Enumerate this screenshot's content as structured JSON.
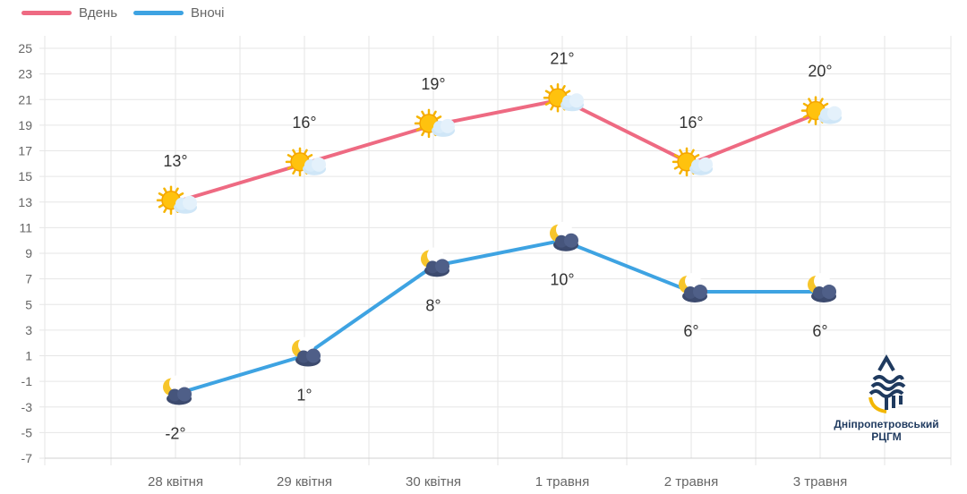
{
  "legend": {
    "day_label": "Вдень",
    "night_label": "Вночі"
  },
  "colors": {
    "day": "#ee6a82",
    "night": "#3ea3e2",
    "grid": "#e6e6e6",
    "tick_text": "#666666",
    "value_text": "#333333",
    "logo_blue": "#1f3a5f",
    "logo_gold": "#f2b705"
  },
  "logo": {
    "line1": "Дніпропетровський",
    "line2": "РЦГМ"
  },
  "chart_data": {
    "type": "line",
    "categories": [
      "28 квітня",
      "29 квітня",
      "30 квітня",
      "1 травня",
      "2 травня",
      "3 травня"
    ],
    "series": [
      {
        "name": "Вдень",
        "values": [
          13,
          16,
          19,
          21,
          16,
          20
        ],
        "labels": [
          "13°",
          "16°",
          "19°",
          "21°",
          "16°",
          "20°"
        ],
        "icons": [
          "sun-cloud-icon",
          "sun-cloud-icon",
          "sun-cloud-icon",
          "sun-cloud-icon",
          "sun-cloud-icon",
          "sun-cloud-icon"
        ],
        "label_position": "above"
      },
      {
        "name": "Вночі",
        "values": [
          -2,
          1,
          8,
          10,
          6,
          6
        ],
        "labels": [
          "-2°",
          "1°",
          "8°",
          "10°",
          "6°",
          "6°"
        ],
        "icons": [
          "moon-cloud-icon",
          "moon-cloud-icon",
          "moon-cloud-icon",
          "moon-cloud-icon",
          "moon-cloud-icon",
          "moon-cloud-icon"
        ],
        "label_position": "below"
      }
    ],
    "yticks": [
      25,
      23,
      21,
      19,
      17,
      15,
      13,
      11,
      9,
      7,
      5,
      3,
      1,
      -1,
      -3,
      -5,
      -7
    ],
    "ylim": [
      -7,
      25
    ],
    "grid": true,
    "legend_position": "top-left"
  }
}
